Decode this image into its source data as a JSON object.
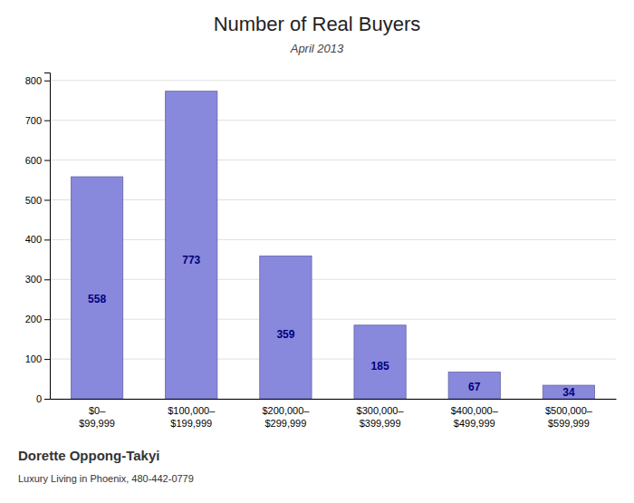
{
  "chart_data": {
    "type": "bar",
    "title": "Number of Real Buyers",
    "subtitle": "April 2013",
    "categories": [
      "$0–\n$99,999",
      "$100,000–\n$199,999",
      "$200,000–\n$299,999",
      "$300,000–\n$399,999",
      "$400,000–\n$499,999",
      "$500,000–\n$599,999"
    ],
    "values": [
      558,
      773,
      359,
      185,
      67,
      34
    ],
    "color": "#8888dd",
    "ylim": [
      0,
      820
    ],
    "yticks": [
      0,
      100,
      200,
      300,
      400,
      500,
      600,
      700,
      800
    ],
    "grid": true,
    "data_labels": true,
    "annotations": [
      "Dorette Oppong-Takyi",
      "Luxury Living in Phoenix, 480-442-0779"
    ]
  }
}
